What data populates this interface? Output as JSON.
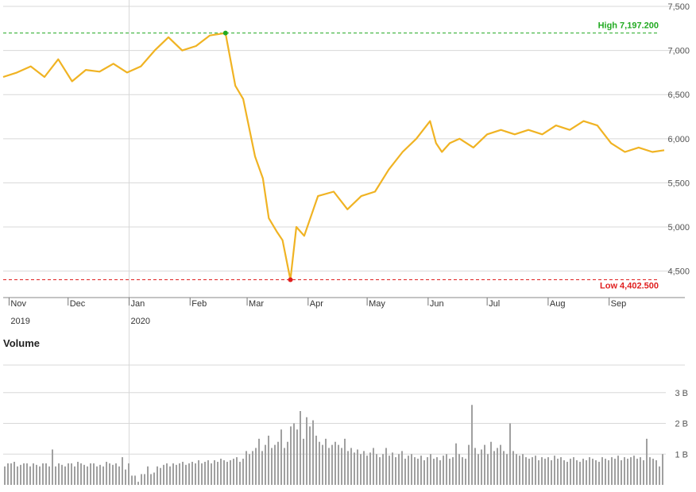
{
  "chart_data": [
    {
      "type": "line",
      "title": "",
      "xlabel": "",
      "ylabel": "",
      "ylim": [
        4200,
        7500
      ],
      "y_ticks": [
        4500,
        5000,
        5500,
        6000,
        6500,
        7000,
        7500
      ],
      "y_tick_labels": [
        "4,500",
        "5,000",
        "5,500",
        "6,000",
        "6,500",
        "7,000",
        "7,500"
      ],
      "month_labels": [
        "Nov",
        "Dec",
        "Jan",
        "Feb",
        "Mar",
        "Apr",
        "May",
        "Jun",
        "Jul",
        "Aug",
        "Sep"
      ],
      "year_labels": [
        {
          "label": "2019",
          "month": "Nov"
        },
        {
          "label": "2020",
          "month": "Jan"
        }
      ],
      "x_start": "2019-10-29",
      "x_end": "2020-09-29",
      "grid": true,
      "line_color": "#f0b323",
      "series": [
        {
          "x": [
            "2019-10-29",
            "2019-11-05",
            "2019-11-12",
            "2019-11-19",
            "2019-11-26",
            "2019-12-03",
            "2019-12-10",
            "2019-12-17",
            "2019-12-24",
            "2019-12-31",
            "2020-01-07",
            "2020-01-14",
            "2020-01-21",
            "2020-01-28",
            "2020-02-04",
            "2020-02-11",
            "2020-02-19",
            "2020-02-24",
            "2020-02-28",
            "2020-03-05",
            "2020-03-09",
            "2020-03-12",
            "2020-03-16",
            "2020-03-19",
            "2020-03-23",
            "2020-03-26",
            "2020-03-30",
            "2020-04-06",
            "2020-04-14",
            "2020-04-21",
            "2020-04-28",
            "2020-05-05",
            "2020-05-12",
            "2020-05-19",
            "2020-05-26",
            "2020-06-02",
            "2020-06-05",
            "2020-06-08",
            "2020-06-12",
            "2020-06-17",
            "2020-06-24",
            "2020-07-01",
            "2020-07-08",
            "2020-07-15",
            "2020-07-22",
            "2020-07-29",
            "2020-08-05",
            "2020-08-12",
            "2020-08-19",
            "2020-08-26",
            "2020-09-02",
            "2020-09-09",
            "2020-09-16",
            "2020-09-23",
            "2020-09-29"
          ],
          "values": [
            6700,
            6750,
            6820,
            6700,
            6900,
            6650,
            6780,
            6760,
            6850,
            6750,
            6820,
            7000,
            7150,
            7000,
            7050,
            7170,
            7197.2,
            6600,
            6450,
            5800,
            5550,
            5100,
            4950,
            4850,
            4402.5,
            5000,
            4900,
            5350,
            5400,
            5200,
            5350,
            5400,
            5650,
            5850,
            6000,
            6200,
            5950,
            5850,
            5950,
            6000,
            5900,
            6050,
            6100,
            6050,
            6100,
            6050,
            6150,
            6100,
            6200,
            6150,
            5950,
            5850,
            5900,
            5850,
            5870
          ]
        }
      ],
      "annotations": [
        {
          "label": "High 7,197.200",
          "value": 7197.2,
          "x": "2020-02-19",
          "color": "#22aa22"
        },
        {
          "label": "Low 4,402.500",
          "value": 4402.5,
          "x": "2020-03-23",
          "color": "#e02020"
        }
      ]
    },
    {
      "type": "bar",
      "title": "Volume",
      "ylim": [
        0,
        3200000000
      ],
      "y_ticks": [
        1000000000,
        2000000000,
        3000000000
      ],
      "y_tick_labels": [
        "1 B",
        "2 B",
        "3 B"
      ],
      "bar_color": "#a0a0a0",
      "values_billions": [
        0.6,
        0.7,
        0.7,
        0.75,
        0.6,
        0.65,
        0.7,
        0.7,
        0.6,
        0.7,
        0.65,
        0.6,
        0.7,
        0.7,
        0.6,
        1.15,
        0.6,
        0.7,
        0.65,
        0.6,
        0.7,
        0.7,
        0.6,
        0.75,
        0.7,
        0.65,
        0.6,
        0.7,
        0.7,
        0.6,
        0.65,
        0.6,
        0.75,
        0.7,
        0.65,
        0.7,
        0.6,
        0.9,
        0.5,
        0.7,
        0.3,
        0.3,
        0.1,
        0.35,
        0.35,
        0.6,
        0.35,
        0.4,
        0.6,
        0.55,
        0.65,
        0.7,
        0.6,
        0.7,
        0.65,
        0.7,
        0.75,
        0.65,
        0.7,
        0.75,
        0.7,
        0.8,
        0.7,
        0.75,
        0.8,
        0.7,
        0.8,
        0.75,
        0.85,
        0.8,
        0.75,
        0.8,
        0.85,
        0.9,
        0.75,
        0.85,
        1.1,
        1.0,
        1.1,
        1.2,
        1.5,
        1.1,
        1.3,
        1.6,
        1.2,
        1.3,
        1.4,
        1.8,
        1.2,
        1.4,
        1.9,
        2.0,
        1.8,
        2.4,
        1.5,
        2.2,
        1.9,
        2.1,
        1.6,
        1.4,
        1.3,
        1.5,
        1.2,
        1.3,
        1.4,
        1.3,
        1.2,
        1.5,
        1.1,
        1.2,
        1.05,
        1.15,
        1.0,
        1.1,
        0.95,
        1.05,
        1.2,
        1.0,
        0.9,
        1.0,
        1.2,
        0.95,
        1.05,
        0.9,
        1.0,
        1.1,
        0.85,
        0.95,
        1.0,
        0.9,
        0.85,
        0.95,
        0.8,
        0.9,
        1.0,
        0.85,
        0.9,
        0.8,
        0.95,
        1.0,
        0.85,
        0.9,
        1.35,
        1.0,
        0.9,
        0.85,
        1.3,
        2.6,
        1.2,
        1.0,
        1.15,
        1.3,
        1.0,
        1.4,
        1.1,
        1.2,
        1.3,
        1.1,
        1.0,
        2.0,
        1.1,
        1.0,
        0.95,
        1.0,
        0.9,
        0.85,
        0.9,
        0.95,
        0.8,
        0.9,
        0.85,
        0.9,
        0.8,
        0.95,
        0.85,
        0.9,
        0.8,
        0.75,
        0.85,
        0.9,
        0.8,
        0.75,
        0.85,
        0.8,
        0.9,
        0.85,
        0.8,
        0.75,
        0.9,
        0.85,
        0.8,
        0.9,
        0.85,
        0.95,
        0.8,
        0.9,
        0.85,
        0.9,
        0.95,
        0.85,
        0.9,
        0.8,
        1.5,
        0.9,
        0.85,
        0.8,
        0.6,
        1.0
      ]
    }
  ]
}
